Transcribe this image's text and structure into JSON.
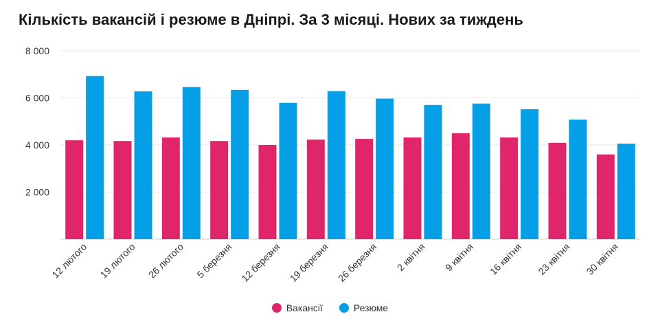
{
  "chart_data": {
    "type": "bar",
    "title": "Кількість вакансій і резюме в Дніпрі. За 3 місяці. Нових за тиждень",
    "categories": [
      "12 лютого",
      "19 лютого",
      "26 лютого",
      "5 березня",
      "12 березня",
      "19 березня",
      "26 березня",
      "2 квітня",
      "9 квітня",
      "16 квітня",
      "23 квітня",
      "30 квітня"
    ],
    "series": [
      {
        "name": "Вакансії",
        "color": "#e0266a",
        "values": [
          4200,
          4170,
          4320,
          4170,
          4000,
          4230,
          4260,
          4320,
          4500,
          4320,
          4090,
          3600
        ]
      },
      {
        "name": "Резюме",
        "color": "#059fe8",
        "values": [
          6930,
          6280,
          6460,
          6340,
          5790,
          6290,
          5970,
          5700,
          5760,
          5520,
          5080,
          4060
        ]
      }
    ],
    "ylim": [
      0,
      8000
    ],
    "yticks": [
      2000,
      4000,
      6000,
      8000
    ],
    "ytick_labels": [
      "2 000",
      "4 000",
      "6 000",
      "8 000"
    ],
    "grid": true,
    "legend_position": "bottom"
  }
}
